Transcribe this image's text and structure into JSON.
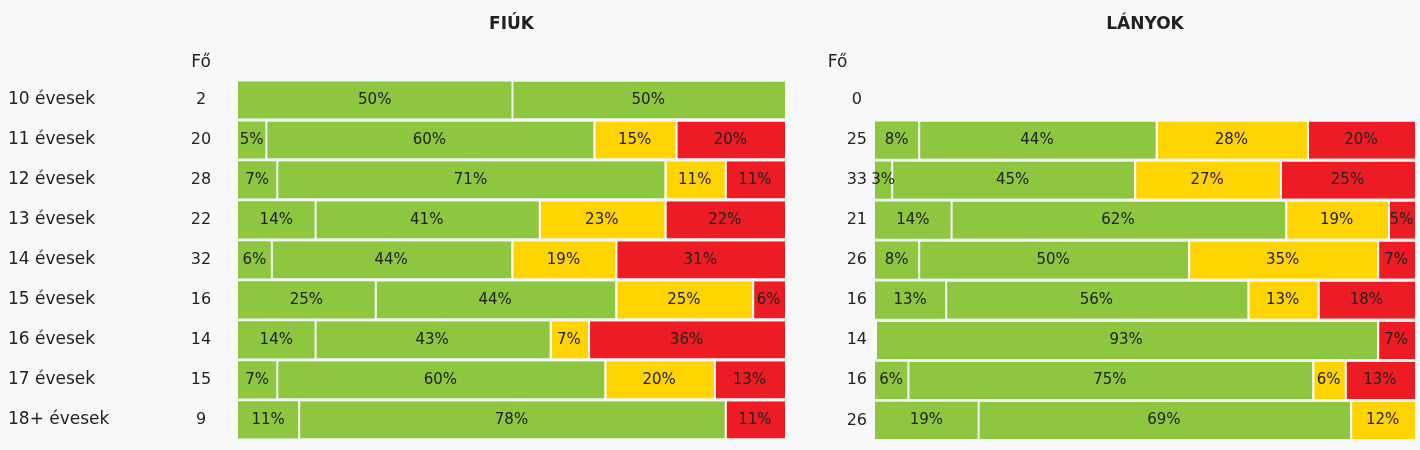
{
  "chart_data": [
    {
      "type": "bar",
      "orientation": "horizontal",
      "stacked": true,
      "title": "FIÚK",
      "ylabel": "Fő",
      "categories": [
        "10 évesek",
        "11 évesek",
        "12 évesek",
        "13 évesek",
        "14 évesek",
        "15 évesek",
        "16 évesek",
        "17 évesek",
        "18+ évesek"
      ],
      "series": [
        {
          "color": "#8dc63f",
          "values": [
            50,
            5,
            7,
            14,
            6,
            25,
            14,
            7,
            11
          ],
          "value_labels": [
            "50%",
            "5%",
            "7%",
            "14%",
            "6%",
            "25%",
            "14%",
            "7%",
            "11%"
          ]
        },
        {
          "color": "#8dc63f",
          "values": [
            50,
            60,
            71,
            41,
            44,
            44,
            43,
            60,
            78
          ],
          "value_labels": [
            "50%",
            "60%",
            "71%",
            "41%",
            "44%",
            "44%",
            "43%",
            "60%",
            "78%"
          ]
        },
        {
          "color": "#ffd400",
          "values": [
            0,
            15,
            11,
            23,
            19,
            25,
            7,
            20,
            0
          ],
          "value_labels": [
            null,
            "15%",
            "11%",
            "23%",
            "19%",
            "25%",
            "7%",
            "20%",
            null
          ]
        },
        {
          "color": "#ed1c24",
          "values": [
            0,
            20,
            11,
            22,
            31,
            6,
            36,
            13,
            11
          ],
          "value_labels": [
            null,
            "20%",
            "11%",
            "22%",
            "31%",
            "6%",
            "36%",
            "13%",
            "11%"
          ]
        }
      ],
      "annotations": [
        "2",
        "20",
        "28",
        "22",
        "32",
        "16",
        "14",
        "15",
        "9"
      ],
      "legend": false
    },
    {
      "type": "bar",
      "orientation": "horizontal",
      "stacked": true,
      "title": "LÁNYOK",
      "ylabel": "Fő",
      "categories": [
        "0",
        "25",
        "33",
        "21",
        "26",
        "16",
        "14",
        "16",
        "26"
      ],
      "series": [
        {
          "color": "#8dc63f",
          "values": [
            0,
            8,
            3,
            14,
            8,
            13,
            0,
            6,
            19
          ],
          "value_labels": [
            null,
            "8%",
            "3%",
            "14%",
            "8%",
            "13%",
            null,
            "6%",
            "19%"
          ]
        },
        {
          "color": "#8dc63f",
          "values": [
            0,
            44,
            45,
            62,
            50,
            56,
            93,
            75,
            69
          ],
          "value_labels": [
            null,
            "44%",
            "45%",
            "62%",
            "50%",
            "56%",
            "93%",
            "75%",
            "69%"
          ]
        },
        {
          "color": "#ffd400",
          "values": [
            0,
            28,
            27,
            19,
            35,
            13,
            0,
            6,
            12
          ],
          "value_labels": [
            null,
            "28%",
            "27%",
            "19%",
            "35%",
            "13%",
            null,
            "6%",
            "12%"
          ]
        },
        {
          "color": "#ed1c24",
          "values": [
            0,
            20,
            25,
            5,
            7,
            18,
            7,
            13,
            0
          ],
          "value_labels": [
            null,
            "20%",
            "25%",
            "5%",
            "7%",
            "18%",
            "7%",
            "13%",
            null
          ]
        }
      ],
      "legend": false
    }
  ]
}
